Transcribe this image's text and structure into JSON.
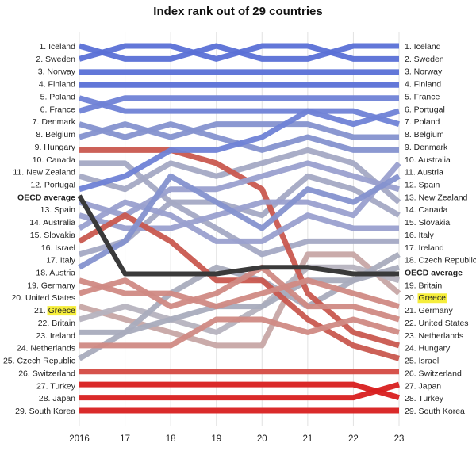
{
  "chart_data": {
    "type": "line",
    "title": "Index rank out of 29 countries",
    "x": [
      "2016",
      "17",
      "18",
      "19",
      "20",
      "21",
      "22",
      "23"
    ],
    "rank_count": 29,
    "left_labels": [
      "1. Iceland",
      "2. Sweden",
      "3. Norway",
      "4. Finland",
      "5. Poland",
      "6. France",
      "7. Denmark",
      "8. Belgium",
      "9. Hungary",
      "10. Canada",
      "11. New Zealand",
      "12. Portugal",
      "OECD average",
      "13. Spain",
      "14. Australia",
      "15. Slovakia",
      "16. Israel",
      "17. Italy",
      "18. Austria",
      "19. Germany",
      "20. United States",
      "21. Greece",
      "22. Britain",
      "23. Ireland",
      "24. Netherlands",
      "25. Czech Republic",
      "26. Switzerland",
      "27. Turkey",
      "28. Japan",
      "29. South Korea"
    ],
    "right_labels": [
      "1. Iceland",
      "2. Sweden",
      "3. Norway",
      "4. Finland",
      "5. France",
      "6. Portugal",
      "7. Poland",
      "8. Belgium",
      "9. Denmark",
      "10. Australia",
      "11. Austria",
      "12. Spain",
      "13. New Zealand",
      "14. Canada",
      "15. Slovakia",
      "16. Italy",
      "17. Ireland",
      "18. Czech Republic",
      "OECD average",
      "19. Britain",
      "20. Greece",
      "21. Germany",
      "22. United States",
      "23. Netherlands",
      "24. Hungary",
      "25. Israel",
      "26. Switzerland",
      "27. Japan",
      "28. Turkey",
      "29. South Korea"
    ],
    "highlight_label": "Greece",
    "series": [
      {
        "key": "Iceland",
        "values": [
          1,
          2,
          2,
          1,
          2,
          2,
          1,
          1
        ],
        "color": "#5a70d6"
      },
      {
        "key": "Sweden",
        "values": [
          2,
          1,
          1,
          2,
          1,
          1,
          2,
          2
        ],
        "color": "#5a70d6"
      },
      {
        "key": "Norway",
        "values": [
          3,
          3,
          3,
          3,
          3,
          3,
          3,
          3
        ],
        "color": "#5a70d6"
      },
      {
        "key": "Finland",
        "values": [
          4,
          4,
          4,
          4,
          4,
          4,
          4,
          4
        ],
        "color": "#5a70d6"
      },
      {
        "key": "Poland",
        "values": [
          5,
          6,
          6,
          6,
          6,
          6,
          6,
          7
        ],
        "color": "#6f82d6"
      },
      {
        "key": "France",
        "values": [
          6,
          5,
          5,
          5,
          5,
          5,
          5,
          5
        ],
        "color": "#6f82d6"
      },
      {
        "key": "Denmark",
        "values": [
          7,
          8,
          7,
          8,
          9,
          8,
          9,
          9
        ],
        "color": "#8592cf"
      },
      {
        "key": "Belgium",
        "values": [
          8,
          7,
          8,
          7,
          7,
          7,
          8,
          8
        ],
        "color": "#8592cf"
      },
      {
        "key": "Hungary",
        "values": [
          9,
          9,
          9,
          10,
          12,
          20,
          23,
          24
        ],
        "color": "#c9584f"
      },
      {
        "key": "Canada",
        "values": [
          10,
          10,
          13,
          13,
          14,
          11,
          12,
          14
        ],
        "color": "#a4a9c4"
      },
      {
        "key": "New Zealand",
        "values": [
          11,
          12,
          10,
          11,
          10,
          9,
          10,
          13
        ],
        "color": "#a4a9c4"
      },
      {
        "key": "Portugal",
        "values": [
          12,
          11,
          9,
          9,
          8,
          6,
          7,
          6
        ],
        "color": "#6f82d6"
      },
      {
        "key": "Spain",
        "values": [
          13,
          14,
          12,
          12,
          11,
          10,
          11,
          12
        ],
        "color": "#9aa0cf"
      },
      {
        "key": "Australia",
        "values": [
          14,
          15,
          15,
          14,
          13,
          13,
          14,
          10
        ],
        "color": "#9aa0cf"
      },
      {
        "key": "Slovakia",
        "values": [
          15,
          13,
          14,
          16,
          16,
          14,
          15,
          15
        ],
        "color": "#9aa0cf"
      },
      {
        "key": "Israel",
        "values": [
          16,
          14,
          16,
          19,
          19,
          22,
          24,
          25
        ],
        "color": "#c9584f"
      },
      {
        "key": "Italy",
        "values": [
          17,
          16,
          13,
          15,
          17,
          16,
          16,
          16
        ],
        "color": "#a4a9c4"
      },
      {
        "key": "Austria",
        "values": [
          18,
          16,
          11,
          13,
          15,
          12,
          13,
          11
        ],
        "color": "#8592cf"
      },
      {
        "key": "Germany",
        "values": [
          19,
          20,
          20,
          21,
          20,
          19,
          20,
          21
        ],
        "color": "#d08a84"
      },
      {
        "key": "United States",
        "values": [
          20,
          19,
          21,
          20,
          18,
          21,
          21,
          22
        ],
        "color": "#d08a84"
      },
      {
        "key": "Greece",
        "values": [
          21,
          22,
          23,
          24,
          24,
          17,
          17,
          20
        ],
        "color": "#c7a6a5"
      },
      {
        "key": "Britain",
        "values": [
          22,
          21,
          22,
          23,
          21,
          18,
          18,
          19
        ],
        "color": "#b6b3bf"
      },
      {
        "key": "Ireland",
        "values": [
          23,
          23,
          22,
          21,
          21,
          19,
          19,
          17
        ],
        "color": "#a9acbd"
      },
      {
        "key": "Netherlands",
        "values": [
          24,
          24,
          24,
          22,
          22,
          23,
          22,
          23
        ],
        "color": "#d08a84"
      },
      {
        "key": "Czech Republic",
        "values": [
          25,
          23,
          20,
          18,
          19,
          21,
          19,
          18
        ],
        "color": "#a9acbd"
      },
      {
        "key": "Switzerland",
        "values": [
          26,
          26,
          26,
          26,
          26,
          26,
          26,
          26
        ],
        "color": "#d44a42"
      },
      {
        "key": "Turkey",
        "values": [
          27,
          27,
          27,
          27,
          27,
          27,
          27,
          28
        ],
        "color": "#d81f1f"
      },
      {
        "key": "Japan",
        "values": [
          28,
          28,
          28,
          28,
          28,
          28,
          28,
          27
        ],
        "color": "#d81f1f"
      },
      {
        "key": "South Korea",
        "values": [
          29,
          29,
          29,
          29,
          29,
          29,
          29,
          29
        ],
        "color": "#d81f1f"
      }
    ],
    "oecd_average": {
      "values": [
        12.5,
        18.5,
        18.5,
        18.5,
        18,
        18,
        18.5,
        18.5
      ],
      "color": "#3a3a3a"
    },
    "ylim": [
      1,
      29
    ],
    "grid": true
  }
}
